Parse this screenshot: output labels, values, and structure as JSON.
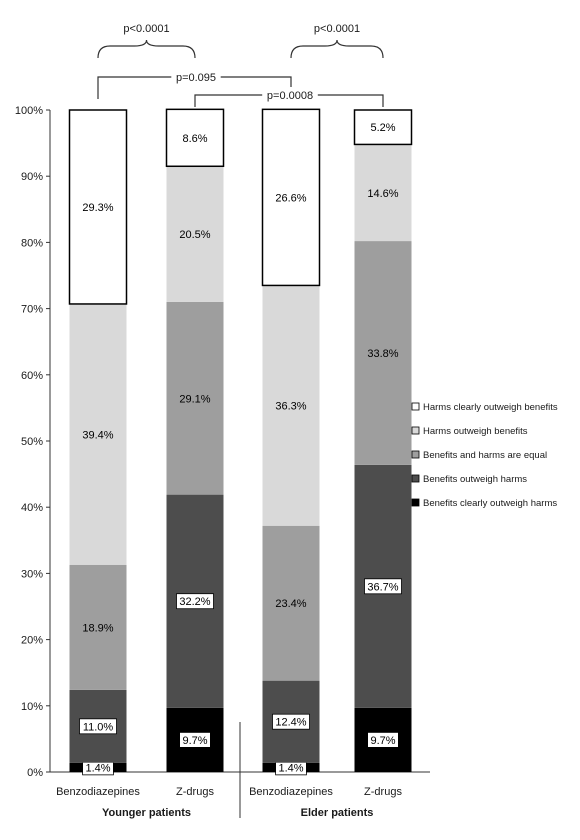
{
  "chart_data": {
    "type": "bar",
    "stacked": true,
    "ylim": [
      0,
      100
    ],
    "yticks": [
      "0%",
      "10%",
      "20%",
      "30%",
      "40%",
      "50%",
      "60%",
      "70%",
      "80%",
      "90%",
      "100%"
    ],
    "categories": [
      "Benzodiazepines",
      "Z-drugs",
      "Benzodiazepines",
      "Z-drugs"
    ],
    "groups": [
      {
        "label": "Younger patients",
        "categories": [
          0,
          1
        ]
      },
      {
        "label": "Elder patients",
        "categories": [
          2,
          3
        ]
      }
    ],
    "series": [
      {
        "name": "Benefits clearly outweigh harms",
        "color": "#000000",
        "values": [
          1.4,
          9.7,
          1.4,
          9.7
        ],
        "labels": [
          "1.4%",
          "9.7%",
          "1.4%",
          "9.7%"
        ]
      },
      {
        "name": "Benefits outweigh harms",
        "color": "#4d4d4d",
        "values": [
          11.0,
          32.2,
          12.4,
          36.7
        ],
        "labels": [
          "11.0%",
          "32.2%",
          "12.4%",
          "36.7%"
        ]
      },
      {
        "name": "Benefits and harms are equal",
        "color": "#9e9e9e",
        "values": [
          18.9,
          29.1,
          23.4,
          33.8
        ],
        "labels": [
          "18.9%",
          "29.1%",
          "23.4%",
          "33.8%"
        ]
      },
      {
        "name": "Harms outweigh benefits",
        "color": "#d9d9d9",
        "values": [
          39.4,
          20.5,
          36.3,
          14.6
        ],
        "labels": [
          "39.4%",
          "20.5%",
          "36.3%",
          "14.6%"
        ]
      },
      {
        "name": "Harms clearly outweigh benefits",
        "color": "#ffffff",
        "values": [
          29.3,
          8.6,
          26.6,
          5.2
        ],
        "labels": [
          "29.3%",
          "8.6%",
          "26.6%",
          "5.2%"
        ]
      }
    ],
    "legend_position": "right",
    "comparisons": [
      {
        "label": "p<0.0001",
        "between": [
          0,
          1
        ],
        "style": "brace"
      },
      {
        "label": "p<0.0001",
        "between": [
          2,
          3
        ],
        "style": "brace"
      },
      {
        "label": "p=0.095",
        "between": [
          0,
          2
        ],
        "style": "bracket"
      },
      {
        "label": "p=0.0008",
        "between": [
          1,
          3
        ],
        "style": "bracket"
      }
    ]
  }
}
